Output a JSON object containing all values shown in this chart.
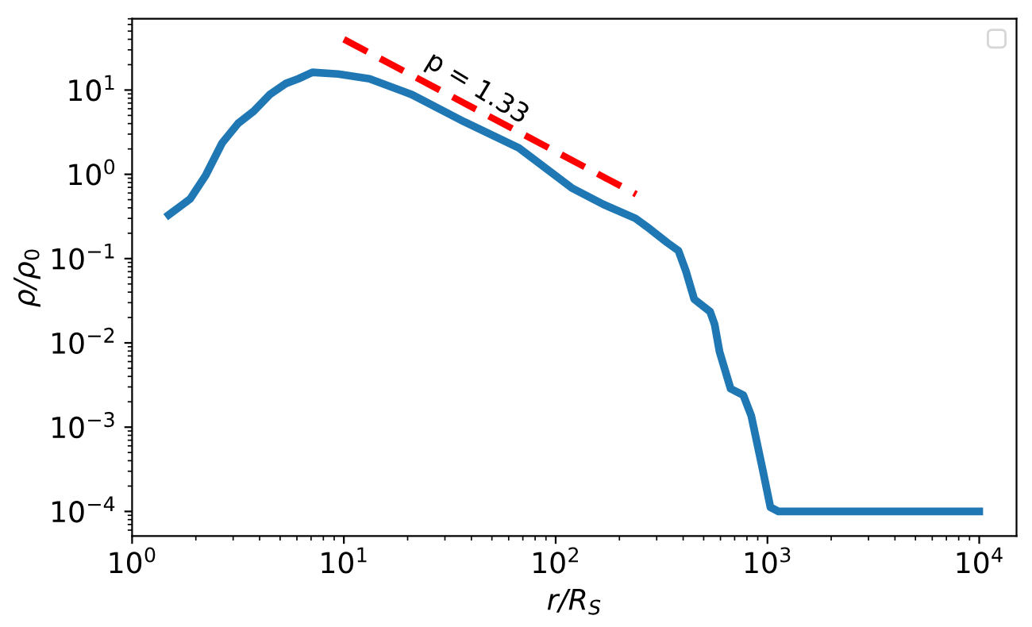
{
  "chart_data": {
    "type": "line",
    "xlabel": "r/R$_{S}$",
    "ylabel": "ρ/ρ$_{0}$",
    "log": "xy",
    "grid": false,
    "xlim": [
      1,
      15000
    ],
    "ylim": [
      5.1e-05,
      70
    ],
    "xticks": [
      {
        "value": 1,
        "label": "10$^{0}$"
      },
      {
        "value": 10,
        "label": "10$^{1}$"
      },
      {
        "value": 100,
        "label": "10$^{2}$"
      },
      {
        "value": 1000,
        "label": "10$^{3}$"
      },
      {
        "value": 10000,
        "label": "10$^{4}$"
      }
    ],
    "yticks": [
      {
        "value": 0.0001,
        "label": "10$^{−4}$"
      },
      {
        "value": 0.001,
        "label": "10$^{−3}$"
      },
      {
        "value": 0.01,
        "label": "10$^{−2}$"
      },
      {
        "value": 0.1,
        "label": "10$^{−1}$"
      },
      {
        "value": 1,
        "label": "10$^{0}$"
      },
      {
        "value": 10,
        "label": "10$^{1}$"
      }
    ],
    "series": [
      {
        "color": "#1f77b4",
        "line_style": "solid",
        "x": [
          1.49,
          1.88,
          2.23,
          2.66,
          3.16,
          3.75,
          4.46,
          5.3,
          6.1,
          7.1,
          9.4,
          13.2,
          21,
          37,
          67,
          119,
          168,
          238,
          269,
          336,
          380,
          413,
          451,
          536,
          563,
          594,
          670,
          769,
          839,
          948,
          1033,
          1127,
          10000
        ],
        "values": [
          0.33,
          0.51,
          0.98,
          2.35,
          4.0,
          5.6,
          8.8,
          11.9,
          13.6,
          16.2,
          15.5,
          13.6,
          8.8,
          4.2,
          2.06,
          0.69,
          0.44,
          0.3,
          0.24,
          0.155,
          0.124,
          0.07,
          0.033,
          0.0235,
          0.0166,
          0.00785,
          0.00286,
          0.0024,
          0.00136,
          0.00032,
          0.000112,
          0.0001,
          0.0001
        ]
      },
      {
        "color": "#ff0000",
        "line_style": "dashed",
        "x": [
          10,
          240
        ],
        "values": [
          40,
          0.58
        ]
      }
    ],
    "annotations": [
      "p = 1.33"
    ]
  }
}
